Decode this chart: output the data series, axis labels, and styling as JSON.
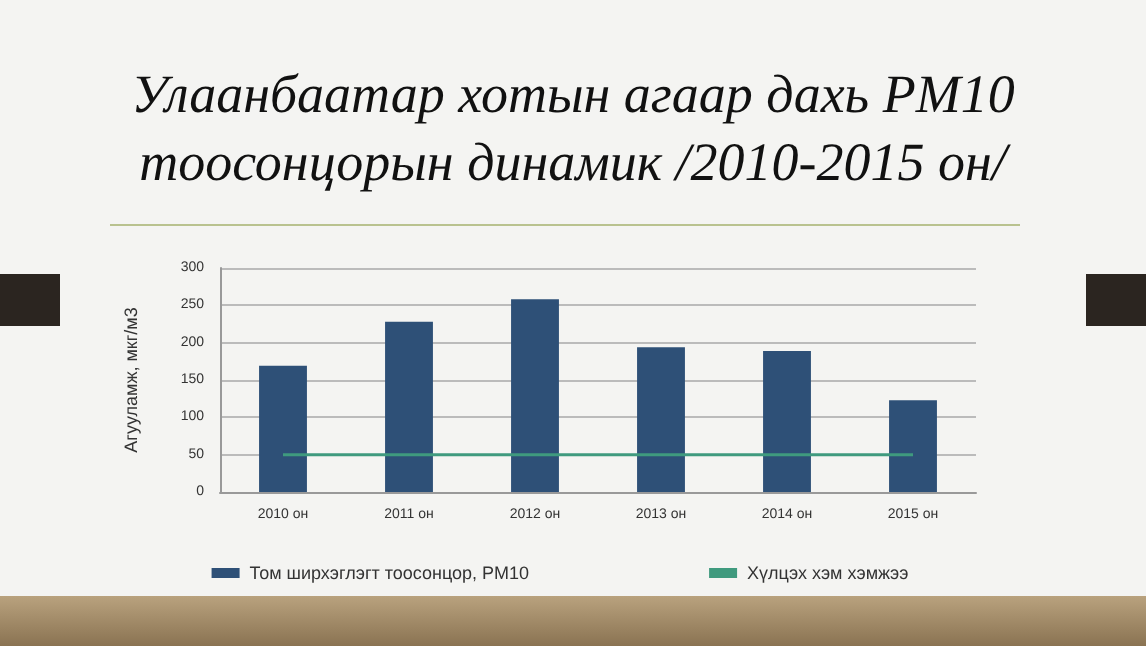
{
  "chart_data": {
    "type": "bar",
    "title": "Улаанбаатар хотын агаар дахь PM10 тоосонцорын динамик /2010-2015 он/",
    "ylabel": "Агууламж, мкг/м3",
    "categories": [
      "2010 он",
      "2011 он",
      "2012 он",
      "2013 он",
      "2014 он",
      "2015 он"
    ],
    "series": [
      {
        "name": "Том ширхэглэгт тоосонцор, PM10",
        "color": "#2e5077",
        "values": [
          169,
          228,
          258,
          194,
          189,
          123
        ]
      },
      {
        "name": "Хүлцэх хэм хэмжээ",
        "type": "line",
        "color": "#3f9a7e",
        "values": [
          50,
          50,
          50,
          50,
          50,
          50
        ]
      }
    ],
    "ylim": [
      0,
      300
    ],
    "yticks": [
      0,
      50,
      100,
      150,
      200,
      250,
      300
    ],
    "grid": "y",
    "legend": "bottom",
    "marker": "none"
  }
}
